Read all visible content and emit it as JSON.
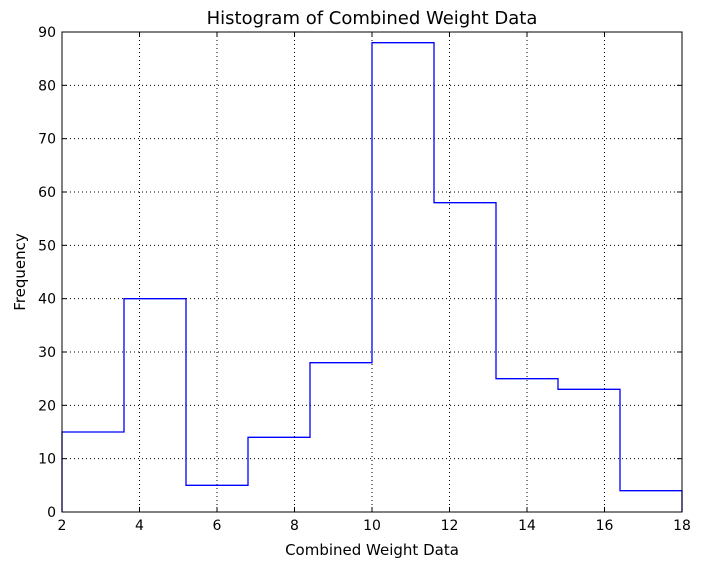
{
  "chart_data": {
    "type": "histogram",
    "title": "Histogram of Combined Weight Data",
    "xlabel": "Combined Weight Data",
    "ylabel": "Frequency",
    "xlim": [
      2,
      18
    ],
    "ylim": [
      0,
      90
    ],
    "x_ticks": [
      2,
      4,
      6,
      8,
      10,
      12,
      14,
      16,
      18
    ],
    "y_ticks": [
      0,
      10,
      20,
      30,
      40,
      50,
      60,
      70,
      80,
      90
    ],
    "bin_edges": [
      2.0,
      3.6,
      5.2,
      6.8,
      8.4,
      10.0,
      11.6,
      13.2,
      14.8,
      16.4,
      18.0
    ],
    "counts": [
      15,
      40,
      5,
      14,
      28,
      88,
      58,
      25,
      23,
      4
    ],
    "histtype": "step",
    "grid": true,
    "line_color": "#0000ff"
  }
}
